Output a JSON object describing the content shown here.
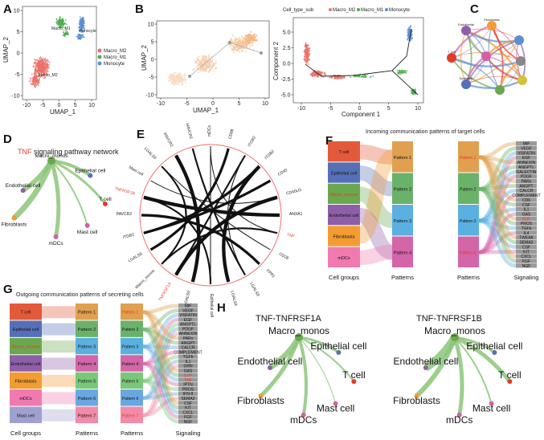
{
  "colors": {
    "macro_m2": "#e8736b",
    "macro_m1": "#4cae4c",
    "monocyte": "#5b8fd4",
    "tcell": "#e23b2a",
    "epithelial": "#5670b8",
    "macro_monos": "#6aa84f",
    "endothelial": "#8e5fa8",
    "fibroblasts": "#f39c34",
    "mdcs": "#d45fa8",
    "mast": "#888888"
  },
  "panels": {
    "A": {
      "label": "A",
      "xlabel": "UMAP_1",
      "ylabel": "UMAP_2",
      "xticks": [
        "-10",
        "-5",
        "0",
        "5",
        "10"
      ],
      "yticks": [
        "10",
        "5",
        "0",
        "-5",
        "-10"
      ],
      "cluster_labels": [
        "Macro_M2",
        "Macro_M1",
        "Monocyte"
      ],
      "legend": [
        "Macro_M2",
        "Macro_M1",
        "Monocyte"
      ]
    },
    "B": {
      "label": "B",
      "xlabel": "UMAP_1",
      "ylabel": "UMAP_2",
      "xticks": [
        "-10",
        "-5",
        "0",
        "5",
        "10"
      ],
      "yticks": [
        "10",
        "5",
        "0",
        "-5",
        "-10"
      ],
      "legend_title": "Cell_type_sub",
      "legend": [
        "Macro_M2",
        "Macro_M1",
        "Monocyte"
      ],
      "traj_xlabel": "Component 1",
      "traj_ylabel": "Component 2",
      "traj_xticks": [
        "-10",
        "-5",
        "0",
        "5",
        "10"
      ],
      "traj_yticks": [
        "5.0",
        "2.5",
        "0.0",
        "-2.5",
        "-5.0"
      ]
    },
    "C": {
      "label": "C",
      "nodes": [
        "Endothelial",
        "Fibroblasts",
        "T cell",
        "Epithelial",
        "mDCs",
        "Mast cell"
      ]
    },
    "D": {
      "label": "D",
      "title_red": "TNF",
      "title_rest": " signaling pathway network",
      "nodes": [
        "Macro_monos",
        "Epithelial cell",
        "Endothelial cell",
        "T cell",
        "Fibroblasts",
        "Mast cell",
        "mDCs"
      ]
    },
    "E": {
      "label": "E",
      "outer": [
        "mDCs",
        "CD86",
        "ITGB2",
        "ITGB2",
        "CD40",
        "CD40LG",
        "ANXA1",
        "TNF",
        "CD28",
        "FPR1",
        "LGALS9",
        "LGALS9",
        "Epithelial cell",
        "LGALS9",
        "TNFRSF1A",
        "Macro_monos",
        "LGALS9",
        "ITGB2",
        "PAVCR2",
        "TNFRSF1B",
        "Mast cell",
        "LGALS9",
        "PAVCR2",
        "HAVCR2"
      ]
    },
    "F": {
      "label": "F",
      "title": "Incoming communication patterns of target cells",
      "cells": [
        "T cell",
        "Epithelial cell",
        "Macro_monos",
        "Endothelial cell",
        "Fibroblasts",
        "mDCs"
      ],
      "patterns": [
        "Pattern 1",
        "Pattern 2",
        "Pattern 3",
        "Pattern 4"
      ],
      "signaling": [
        "MIF",
        "VEGF",
        "VISFATIN",
        "EGF",
        "ANNEXIN",
        "ANGPTL",
        "GALECTIN",
        "PDGF",
        "PARs",
        "ANGPT",
        "CALCR",
        "COMPLEMENT",
        "CD6",
        "CSF",
        "IL1",
        "GAS",
        "GDF",
        "PROS",
        "TGFb",
        "IL4",
        "TWEAK",
        "SEMA3",
        "CSF",
        "KIT",
        "CXCL",
        "FGF",
        "NGF"
      ],
      "xlabels": [
        "Cell groups",
        "Patterns",
        "Patterns",
        "Signaling"
      ]
    },
    "G": {
      "label": "G",
      "title": "Outgoing communication patterns of secreting cells",
      "cells": [
        "T cell",
        "Epithelial cell",
        "Macro_monos",
        "Endothelial cell",
        "Fibroblasts",
        "mDCs",
        "Mast cell"
      ],
      "patterns": [
        "Pattern 1",
        "Pattern 2",
        "Pattern 3",
        "Pattern 4",
        "Pattern 5",
        "Pattern 6",
        "Pattern 7"
      ],
      "signaling": [
        "MIF",
        "VEGF",
        "VISFATIN",
        "EGF",
        "ANGPTL",
        "PDGF",
        "ANNEXIN",
        "PARs",
        "ANGPT",
        "CALCR",
        "COMPLEMENT",
        "TGFb",
        "IL1",
        "GRN",
        "GAS",
        "GDF",
        "TNF",
        "IPTN",
        "PROS",
        "IFN-II",
        "SEMA3",
        "CSF",
        "KIT",
        "CXCL",
        "FGF",
        "NGF"
      ],
      "xlabels": [
        "Cell groups",
        "Patterns",
        "Patterns",
        "Signaling"
      ]
    },
    "H": {
      "label": "H",
      "left_title": "TNF-TNFRSF1A",
      "right_title": "TNF-TNFRSF1B",
      "nodes": [
        "Macro_monos",
        "Epithelial cell",
        "Endothelial cell",
        "T cell",
        "Fibroblasts",
        "Mast cell",
        "mDCs"
      ]
    }
  }
}
